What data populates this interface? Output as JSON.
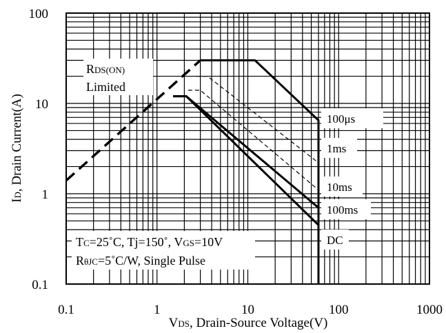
{
  "chart_data": {
    "type": "line",
    "x_scale": "log",
    "y_scale": "log",
    "xlim": [
      0.1,
      1000
    ],
    "ylim": [
      0.1,
      100
    ],
    "grid": true,
    "x_ticks": [
      "0.1",
      "1",
      "10",
      "100",
      "1000"
    ],
    "y_ticks": [
      "100",
      "10",
      "1",
      "0.1"
    ],
    "xlabel": {
      "main": "V",
      "sub": "DS",
      "rest": ", Drain-Source Voltage(V)"
    },
    "ylabel": {
      "main": "I",
      "sub": "D",
      "rest": ", Drain Current(A)"
    },
    "rds_limit_label": {
      "main": "R",
      "sub": "DS(ON)",
      "line2": "Limited"
    },
    "conditions": {
      "line1": {
        "a": "T",
        "a_sub": "C",
        "b": "=25˚C, Tj=150˚, V",
        "b_sub": "GS",
        "c": "=10V"
      },
      "line2": {
        "a": "R",
        "a_sub": "θJC",
        "b": "=5˚C/W, Single Pulse"
      }
    },
    "rds_on_limit": {
      "x": [
        0.1,
        3.0
      ],
      "y": [
        1.4,
        30
      ]
    },
    "series": [
      {
        "name": "100μs",
        "x": [
          0.1,
          3.0,
          12,
          60,
          60
        ],
        "y": [
          1.4,
          30,
          30,
          6.5,
          0.1
        ]
      },
      {
        "name": "1ms",
        "x": [
          0.1,
          2.7,
          3.6,
          60,
          60
        ],
        "y": [
          1.4,
          20,
          20,
          2.2,
          0.1
        ]
      },
      {
        "name": "10ms",
        "x": [
          0.1,
          2.2,
          3.0,
          60,
          60
        ],
        "y": [
          1.4,
          14,
          14,
          1.1,
          0.1
        ]
      },
      {
        "name": "100ms",
        "x": [
          0.1,
          1.5,
          2.1,
          60,
          60
        ],
        "y": [
          1.4,
          12,
          12,
          0.7,
          0.1
        ]
      },
      {
        "name": "DC",
        "x": [
          0.1,
          1.5,
          2.1,
          60,
          60
        ],
        "y": [
          1.4,
          12,
          12,
          0.45,
          0.1
        ]
      }
    ]
  }
}
